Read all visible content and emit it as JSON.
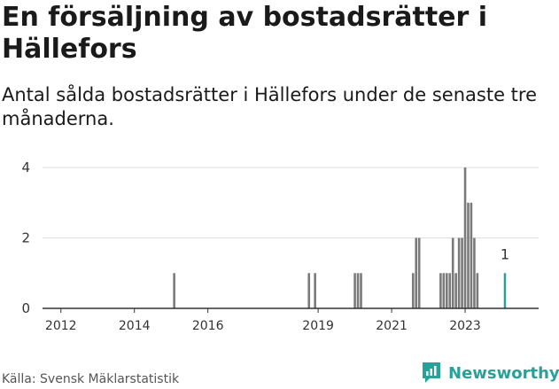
{
  "header": {
    "title": "En försäljning av bostadsrätter i Hällefors",
    "subtitle": "Antal sålda bostadsrätter i Hällefors under de senaste tre månaderna."
  },
  "footer": {
    "source": "Källa: Svensk Mäklarstatistik",
    "brand": "Newsworthy",
    "brand_icon": "newsworthy-logo-icon"
  },
  "colors": {
    "bar": "#7a7a7a",
    "highlight": "#2aa198",
    "grid": "#dddddd",
    "axis": "#333333",
    "text": "#333333"
  },
  "chart_data": {
    "type": "bar",
    "title": "",
    "xlabel": "",
    "ylabel": "",
    "ylim": [
      0,
      4
    ],
    "yticks": [
      0,
      2,
      4
    ],
    "xticks": [
      "2012",
      "2014",
      "2016",
      "2019",
      "2021",
      "2023"
    ],
    "grid": true,
    "legend": "none",
    "bars": [
      {
        "date": "2015-02",
        "value": 1
      },
      {
        "date": "2018-10",
        "value": 1
      },
      {
        "date": "2018-12",
        "value": 1
      },
      {
        "date": "2020-01",
        "value": 1
      },
      {
        "date": "2020-02",
        "value": 1
      },
      {
        "date": "2020-03",
        "value": 1
      },
      {
        "date": "2021-08",
        "value": 1
      },
      {
        "date": "2021-09",
        "value": 2
      },
      {
        "date": "2021-10",
        "value": 2
      },
      {
        "date": "2022-05",
        "value": 1
      },
      {
        "date": "2022-06",
        "value": 1
      },
      {
        "date": "2022-07",
        "value": 1
      },
      {
        "date": "2022-08",
        "value": 1
      },
      {
        "date": "2022-09",
        "value": 2
      },
      {
        "date": "2022-10",
        "value": 1
      },
      {
        "date": "2022-11",
        "value": 2
      },
      {
        "date": "2022-12",
        "value": 2
      },
      {
        "date": "2023-01",
        "value": 4
      },
      {
        "date": "2023-02",
        "value": 3
      },
      {
        "date": "2023-03",
        "value": 3
      },
      {
        "date": "2023-04",
        "value": 2
      },
      {
        "date": "2023-05",
        "value": 1
      }
    ],
    "highlight": {
      "date": "2024-02",
      "value": 1,
      "label": "1"
    }
  }
}
